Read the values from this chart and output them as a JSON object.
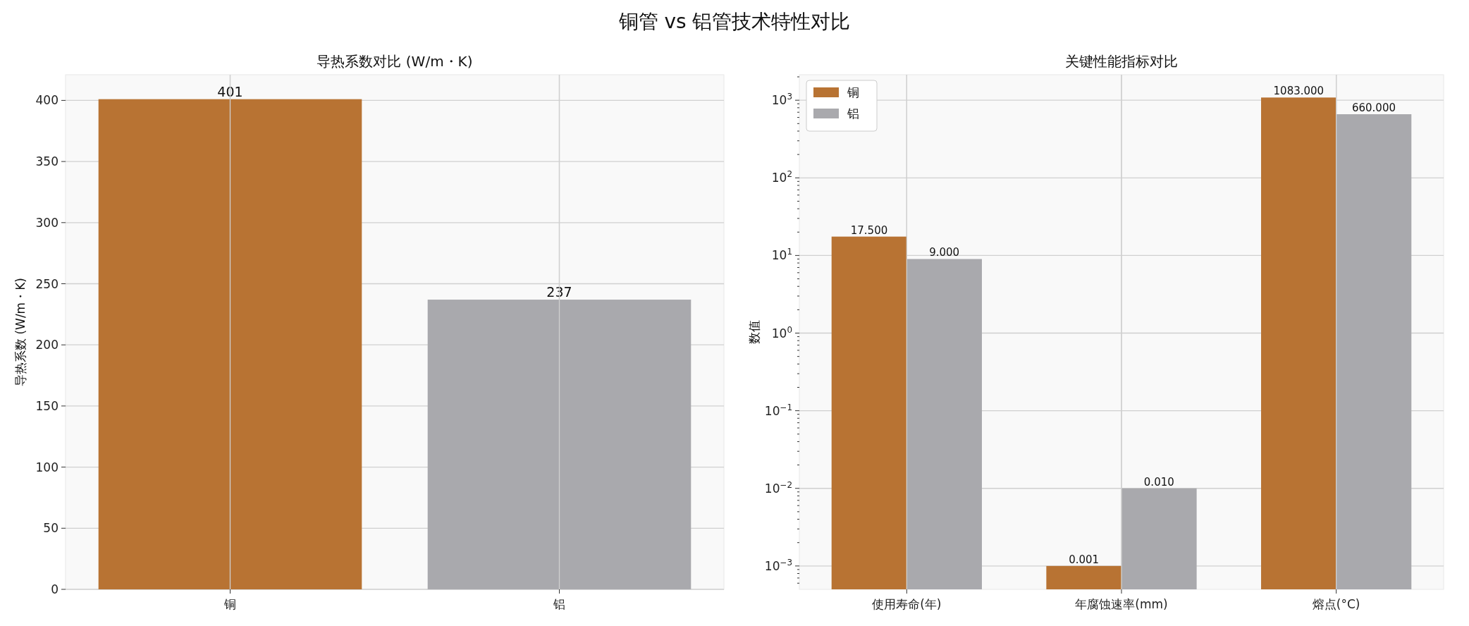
{
  "chart_data": [
    {
      "type": "bar",
      "title": "导热系数对比 (W/m・K)",
      "ylabel": "导热系数 (W/m・K)",
      "annotations": [
        "铜管 vs 铝管技术特性对比"
      ],
      "categories": [
        "铜",
        "铝"
      ],
      "values": [
        401,
        237
      ],
      "colors": [
        "#b87333",
        "#a9a9ad"
      ],
      "ylim": [
        0,
        421
      ],
      "yticks": [
        0,
        50,
        100,
        150,
        200,
        250,
        300,
        350,
        400
      ],
      "grid": true,
      "data_labels": true
    },
    {
      "type": "bar",
      "title": "关键性能指标对比",
      "ylabel": "数值",
      "categories": [
        "使用寿命(年)",
        "年腐蚀速率(mm)",
        "熔点(°C)"
      ],
      "series": [
        {
          "name": "铜",
          "color": "#b87333",
          "values": [
            17.5,
            0.001,
            1083
          ],
          "value_labels": [
            "17.500",
            "0.001",
            "1083.000"
          ]
        },
        {
          "name": "铝",
          "color": "#a9a9ad",
          "values": [
            9,
            0.01,
            660
          ],
          "value_labels": [
            "9.000",
            "0.010",
            "660.000"
          ]
        }
      ],
      "log": true,
      "ylim": [
        0.0005,
        2130
      ],
      "yticks": [
        {
          "value": 0.001,
          "label": "10$^{−3}$"
        },
        {
          "value": 0.01,
          "label": "10$^{−2}$"
        },
        {
          "value": 0.1,
          "label": "10$^{−1}$"
        },
        {
          "value": 1,
          "label": "10$^{0}$"
        },
        {
          "value": 10,
          "label": "10$^{1}$"
        },
        {
          "value": 100,
          "label": "10$^{2}$"
        },
        {
          "value": 1000,
          "label": "10$^{3}$"
        }
      ],
      "grid": true,
      "legend": "top left"
    }
  ]
}
